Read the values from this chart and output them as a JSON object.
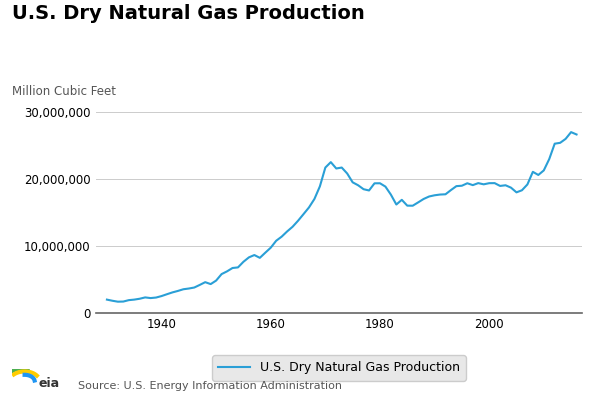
{
  "title": "U.S. Dry Natural Gas Production",
  "unit_label": "Million Cubic Feet",
  "source": "Source: U.S. Energy Information Administration",
  "legend_label": "U.S. Dry Natural Gas Production",
  "line_color": "#2a9fd6",
  "background_color": "#ffffff",
  "ylim": [
    0,
    30000000
  ],
  "yticks": [
    0,
    10000000,
    20000000,
    30000000
  ],
  "xlim": [
    1928,
    2017
  ],
  "xticks": [
    1940,
    1960,
    1980,
    2000
  ],
  "years": [
    1930,
    1931,
    1932,
    1933,
    1934,
    1935,
    1936,
    1937,
    1938,
    1939,
    1940,
    1941,
    1942,
    1943,
    1944,
    1945,
    1946,
    1947,
    1948,
    1949,
    1950,
    1951,
    1952,
    1953,
    1954,
    1955,
    1956,
    1957,
    1958,
    1959,
    1960,
    1961,
    1962,
    1963,
    1964,
    1965,
    1966,
    1967,
    1968,
    1969,
    1970,
    1971,
    1972,
    1973,
    1974,
    1975,
    1976,
    1977,
    1978,
    1979,
    1980,
    1981,
    1982,
    1983,
    1984,
    1985,
    1986,
    1987,
    1988,
    1989,
    1990,
    1991,
    1992,
    1993,
    1994,
    1995,
    1996,
    1997,
    1998,
    1999,
    2000,
    2001,
    2002,
    2003,
    2004,
    2005,
    2006,
    2007,
    2008,
    2009,
    2010,
    2011,
    2012,
    2013,
    2014,
    2015,
    2016
  ],
  "values": [
    1970000,
    1800000,
    1660000,
    1680000,
    1890000,
    1970000,
    2100000,
    2300000,
    2200000,
    2280000,
    2500000,
    2780000,
    3050000,
    3270000,
    3520000,
    3630000,
    3780000,
    4170000,
    4580000,
    4290000,
    4820000,
    5790000,
    6200000,
    6700000,
    6790000,
    7630000,
    8290000,
    8640000,
    8220000,
    8990000,
    9740000,
    10780000,
    11390000,
    12170000,
    12870000,
    13770000,
    14760000,
    15760000,
    17030000,
    18920000,
    21730000,
    22540000,
    21590000,
    21730000,
    20840000,
    19520000,
    19080000,
    18490000,
    18300000,
    19370000,
    19380000,
    18880000,
    17680000,
    16200000,
    16900000,
    16030000,
    16020000,
    16520000,
    17030000,
    17400000,
    17580000,
    17690000,
    17730000,
    18360000,
    18950000,
    19010000,
    19380000,
    19100000,
    19400000,
    19220000,
    19390000,
    19400000,
    18980000,
    19080000,
    18720000,
    18020000,
    18330000,
    19200000,
    21090000,
    20620000,
    21300000,
    23000000,
    25300000,
    25430000,
    26020000,
    27030000,
    26680000
  ],
  "title_fontsize": 14,
  "unit_fontsize": 8.5,
  "tick_fontsize": 8.5,
  "legend_fontsize": 9,
  "source_fontsize": 8
}
